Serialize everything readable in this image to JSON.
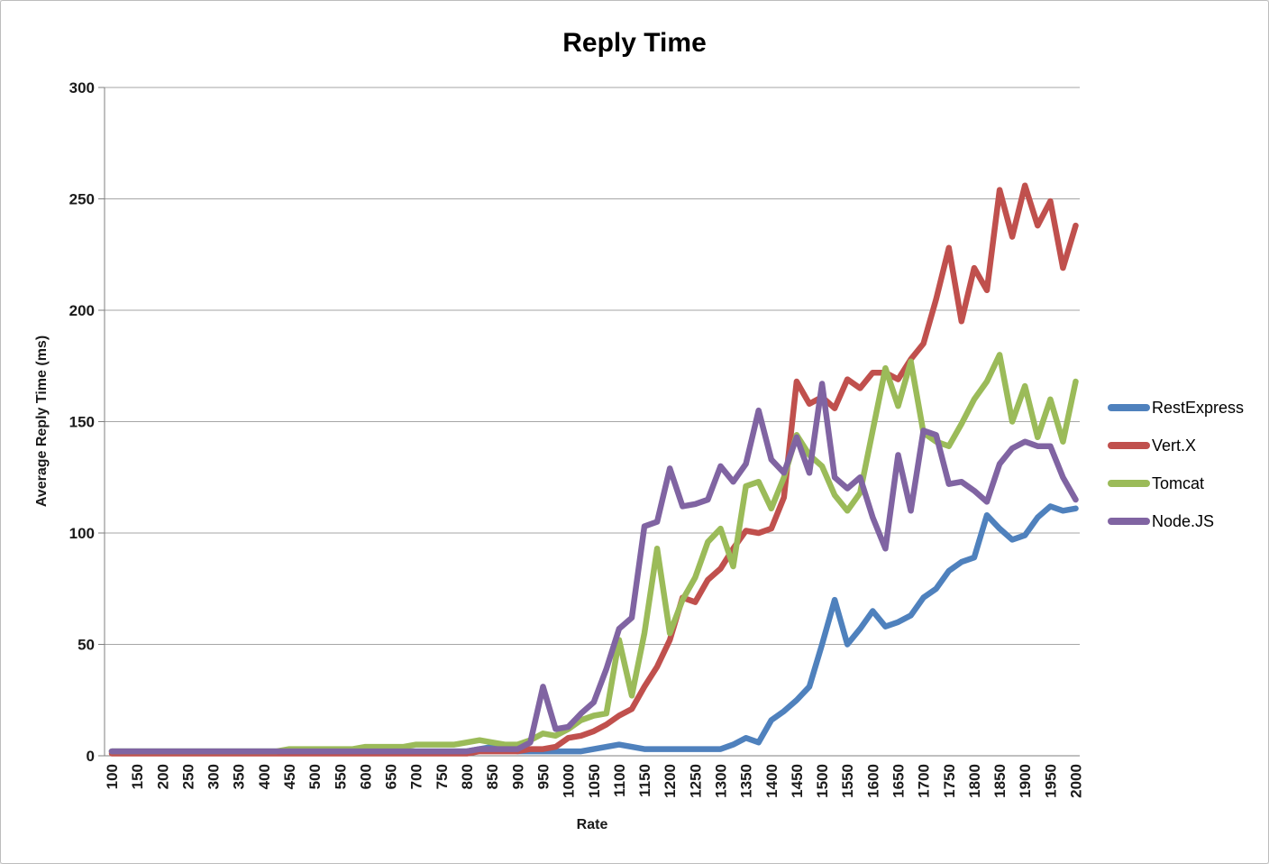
{
  "window": {
    "background": "#ffffff",
    "border_color": "#bdbdbd"
  },
  "styles": {
    "gridline_color": "#a6a6a6",
    "axis_color": "#7f7f7f",
    "tick_label_color": "#1a1a1a",
    "title_color": "#000000"
  },
  "chart_data": {
    "type": "line",
    "title": "Reply Time",
    "xlabel": "Rate",
    "ylabel": "Average Reply Time (ms)",
    "ylim": [
      0,
      300
    ],
    "yticks": [
      0,
      50,
      100,
      150,
      200,
      250,
      300
    ],
    "grid": "horizontal",
    "legend_position": "right",
    "x_tick_labels": [
      100,
      150,
      200,
      250,
      300,
      350,
      400,
      450,
      500,
      550,
      600,
      650,
      700,
      750,
      800,
      850,
      900,
      950,
      1000,
      1050,
      1100,
      1150,
      1200,
      1250,
      1300,
      1350,
      1400,
      1450,
      1500,
      1550,
      1600,
      1650,
      1700,
      1750,
      1800,
      1850,
      1900,
      1950,
      2000
    ],
    "x": [
      100,
      125,
      150,
      175,
      200,
      225,
      250,
      275,
      300,
      325,
      350,
      375,
      400,
      425,
      450,
      475,
      500,
      525,
      550,
      575,
      600,
      625,
      650,
      675,
      700,
      725,
      750,
      775,
      800,
      825,
      850,
      875,
      900,
      925,
      950,
      975,
      1000,
      1025,
      1050,
      1075,
      1100,
      1125,
      1150,
      1175,
      1200,
      1225,
      1250,
      1275,
      1300,
      1325,
      1350,
      1375,
      1400,
      1425,
      1450,
      1475,
      1500,
      1525,
      1550,
      1575,
      1600,
      1625,
      1650,
      1675,
      1700,
      1725,
      1750,
      1775,
      1800,
      1825,
      1850,
      1875,
      1900,
      1925,
      1950,
      1975,
      2000
    ],
    "series": [
      {
        "name": "RestExpress",
        "color": "#4F81BD",
        "values": [
          2,
          2,
          2,
          2,
          2,
          2,
          2,
          2,
          2,
          2,
          2,
          2,
          2,
          2,
          2,
          2,
          2,
          2,
          2,
          2,
          2,
          2,
          2,
          2,
          2,
          2,
          2,
          2,
          2,
          3,
          4,
          3,
          2,
          2,
          2,
          2,
          2,
          2,
          3,
          4,
          5,
          4,
          3,
          3,
          3,
          3,
          3,
          3,
          3,
          5,
          8,
          6,
          16,
          20,
          25,
          31,
          50,
          70,
          50,
          57,
          65,
          58,
          60,
          63,
          71,
          75,
          83,
          87,
          89,
          108,
          102,
          97,
          99,
          107,
          112,
          110,
          111
        ]
      },
      {
        "name": "Vert.X",
        "color": "#C0504D",
        "values": [
          1,
          1,
          1,
          1,
          1,
          1,
          1,
          1,
          1,
          1,
          1,
          1,
          1,
          1,
          1,
          1,
          1,
          1,
          1,
          1,
          1,
          1,
          1,
          1,
          1,
          1,
          1,
          1,
          1,
          2,
          2,
          2,
          2,
          3,
          3,
          4,
          8,
          9,
          11,
          14,
          18,
          21,
          31,
          40,
          52,
          71,
          69,
          79,
          84,
          93,
          101,
          100,
          102,
          116,
          168,
          158,
          161,
          156,
          169,
          165,
          172,
          172,
          169,
          178,
          185,
          205,
          228,
          195,
          219,
          209,
          254,
          233,
          256,
          238,
          249,
          219,
          238
        ]
      },
      {
        "name": "Tomcat",
        "color": "#9BBB59",
        "values": [
          2,
          2,
          2,
          2,
          2,
          2,
          2,
          2,
          2,
          2,
          2,
          2,
          2,
          2,
          3,
          3,
          3,
          3,
          3,
          3,
          4,
          4,
          4,
          4,
          5,
          5,
          5,
          5,
          6,
          7,
          6,
          5,
          5,
          7,
          10,
          9,
          12,
          16,
          18,
          19,
          52,
          27,
          55,
          93,
          55,
          70,
          80,
          96,
          102,
          85,
          121,
          123,
          111,
          125,
          144,
          135,
          130,
          117,
          110,
          118,
          146,
          174,
          157,
          177,
          145,
          141,
          139,
          149,
          160,
          168,
          180,
          150,
          166,
          143,
          160,
          141,
          168
        ]
      },
      {
        "name": "Node.JS",
        "color": "#8064A2",
        "values": [
          2,
          2,
          2,
          2,
          2,
          2,
          2,
          2,
          2,
          2,
          2,
          2,
          2,
          2,
          2,
          2,
          2,
          2,
          2,
          2,
          2,
          2,
          2,
          2,
          2,
          2,
          2,
          2,
          2,
          3,
          3,
          3,
          3,
          6,
          31,
          12,
          13,
          19,
          24,
          39,
          57,
          62,
          103,
          105,
          129,
          112,
          113,
          115,
          130,
          123,
          131,
          155,
          133,
          127,
          143,
          127,
          167,
          125,
          120,
          125,
          107,
          93,
          135,
          110,
          146,
          144,
          122,
          123,
          119,
          114,
          131,
          138,
          141,
          139,
          139,
          125,
          115
        ]
      }
    ]
  }
}
